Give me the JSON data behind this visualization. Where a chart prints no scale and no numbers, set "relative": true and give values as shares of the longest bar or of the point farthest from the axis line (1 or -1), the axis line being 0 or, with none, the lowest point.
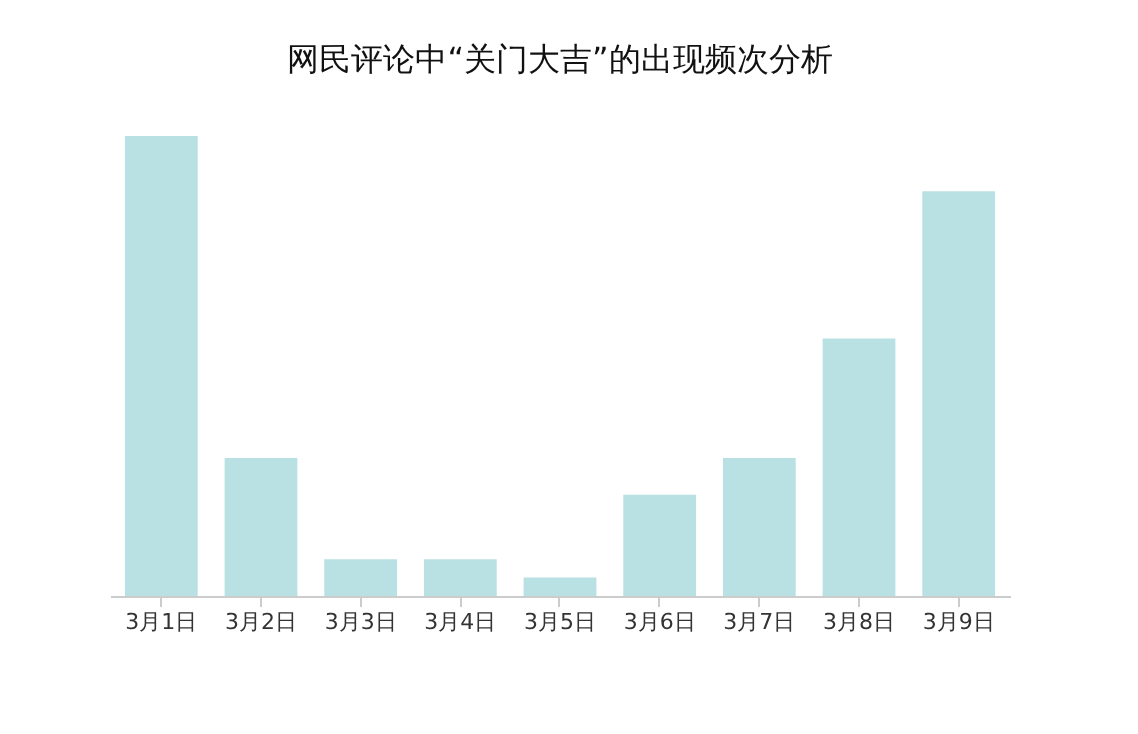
{
  "chart_data": {
    "type": "bar",
    "title": "网民评论中“关门大吉”的出现频次分析",
    "relative": true,
    "categories": [
      "3月1日",
      "3月2日",
      "3月3日",
      "3月4日",
      "3月5日",
      "3月6日",
      "3月7日",
      "3月8日",
      "3月9日"
    ],
    "values": [
      1,
      0.3,
      0.08,
      0.08,
      0.04,
      0.22,
      0.3,
      0.56,
      0.88
    ],
    "color": "#b9e0e3",
    "grid": false
  }
}
